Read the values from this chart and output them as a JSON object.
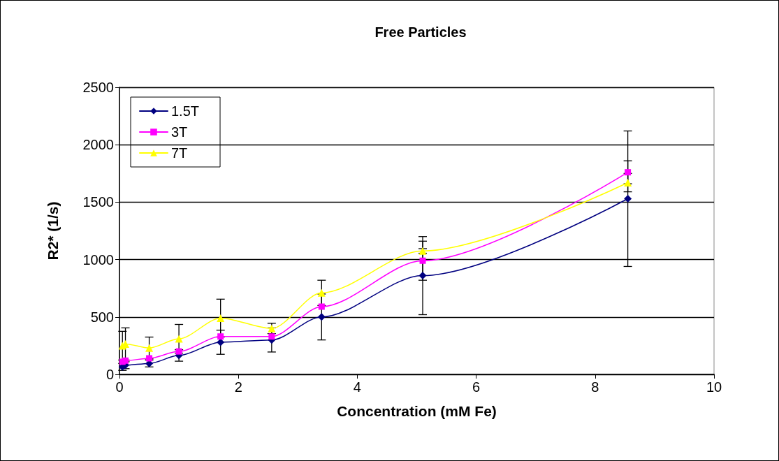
{
  "chart_data": {
    "type": "line",
    "title": "Free Particles",
    "xlabel": "Concentration (mM Fe)",
    "ylabel": "R2* (1/s)",
    "x": [
      0.05,
      0.1,
      0.5,
      1.0,
      1.7,
      2.56,
      3.4,
      5.1,
      8.55
    ],
    "series": [
      {
        "name": "1.5T",
        "color": "#000080",
        "marker": "diamond",
        "values": [
          65,
          80,
          95,
          165,
          280,
          300,
          500,
          860,
          1530
        ],
        "errors": [
          30,
          30,
          30,
          50,
          105,
          105,
          200,
          340,
          590
        ]
      },
      {
        "name": "3T",
        "color": "#ff00ff",
        "marker": "square",
        "values": [
          110,
          120,
          140,
          200,
          330,
          330,
          590,
          990,
          1760
        ],
        "errors": [
          null,
          null,
          null,
          null,
          null,
          null,
          null,
          170,
          100
        ]
      },
      {
        "name": "7T",
        "color": "#ffff00",
        "marker": "triangle",
        "values": [
          250,
          265,
          230,
          310,
          490,
          400,
          710,
          1075,
          1670
        ],
        "errors": [
          125,
          140,
          95,
          125,
          165,
          45,
          110,
          20,
          80
        ]
      }
    ],
    "xlim": [
      0,
      10
    ],
    "xticks": [
      0,
      2,
      4,
      6,
      8,
      10
    ],
    "ylim": [
      0,
      2500
    ],
    "yticks": [
      0,
      500,
      1000,
      1500,
      2000,
      2500
    ],
    "grid": "y",
    "legend": "top left",
    "line_style": "solid"
  }
}
